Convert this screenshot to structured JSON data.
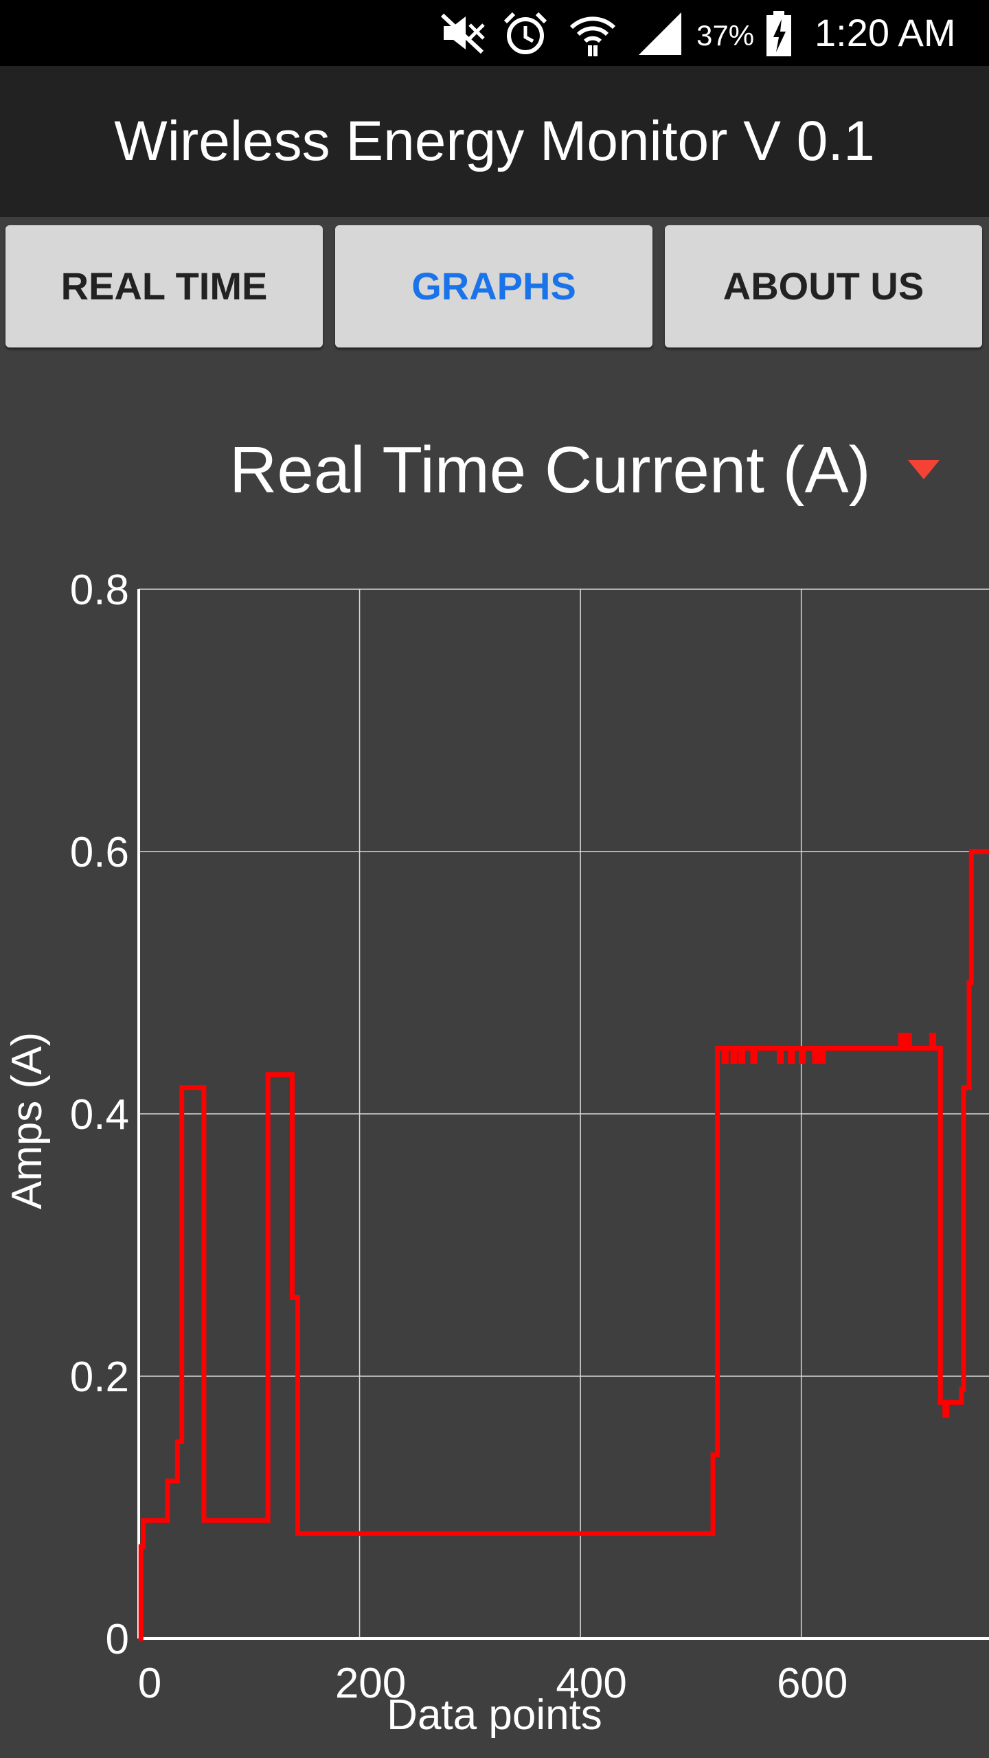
{
  "status_bar": {
    "battery": "37%",
    "time": "1:20 AM",
    "icons": [
      "mute-icon",
      "alarm-icon",
      "wifi-icon",
      "signal-icon",
      "battery-charging-icon"
    ]
  },
  "app": {
    "title": "Wireless Energy Monitor V 0.1"
  },
  "tabs": [
    {
      "label": "REAL TIME",
      "active": false
    },
    {
      "label": "GRAPHS",
      "active": true
    },
    {
      "label": "ABOUT US",
      "active": false
    }
  ],
  "spinner": {
    "selected": "Real Time Current (A)",
    "arrow_icon": "dropdown-arrow-icon"
  },
  "colors": {
    "background": "#3f3f3f",
    "app_bar": "#222222",
    "active_tab": "#1a73e8",
    "series": "#ff0000",
    "dropdown_arrow": "#f44336"
  },
  "chart_data": {
    "type": "line",
    "title": "",
    "xlabel": "Data points",
    "ylabel": "Amps (A)",
    "xlim": [
      0,
      770
    ],
    "ylim": [
      0,
      0.8
    ],
    "x_ticks": [
      "0",
      "200",
      "400",
      "600"
    ],
    "y_ticks": [
      "0",
      "0.2",
      "0.4",
      "0.6",
      "0.8"
    ],
    "grid": true,
    "series": [
      {
        "color": "#ff0000",
        "step": true,
        "x": [
          0,
          2,
          4,
          26,
          28,
          35,
          37,
          39,
          41,
          56,
          59,
          115,
          117,
          135,
          139,
          140,
          144,
          518,
          520,
          522,
          524,
          530,
          532,
          538,
          540,
          545,
          547,
          556,
          558,
          580,
          582,
          590,
          592,
          600,
          602,
          612,
          614,
          618,
          620,
          624,
          626,
          690,
          692,
          696,
          698,
          718,
          720,
          726,
          728,
          730,
          732,
          743,
          745,
          747,
          749,
          752,
          754,
          770
        ],
        "y": [
          0.0,
          0.07,
          0.09,
          0.12,
          0.12,
          0.15,
          0.15,
          0.42,
          0.42,
          0.42,
          0.09,
          0.09,
          0.43,
          0.43,
          0.26,
          0.26,
          0.08,
          0.08,
          0.14,
          0.14,
          0.45,
          0.44,
          0.45,
          0.44,
          0.45,
          0.44,
          0.45,
          0.44,
          0.45,
          0.44,
          0.45,
          0.44,
          0.45,
          0.44,
          0.45,
          0.44,
          0.45,
          0.44,
          0.45,
          0.45,
          0.45,
          0.46,
          0.45,
          0.46,
          0.45,
          0.46,
          0.45,
          0.18,
          0.18,
          0.17,
          0.18,
          0.18,
          0.19,
          0.42,
          0.42,
          0.5,
          0.6,
          0.6
        ]
      }
    ]
  }
}
